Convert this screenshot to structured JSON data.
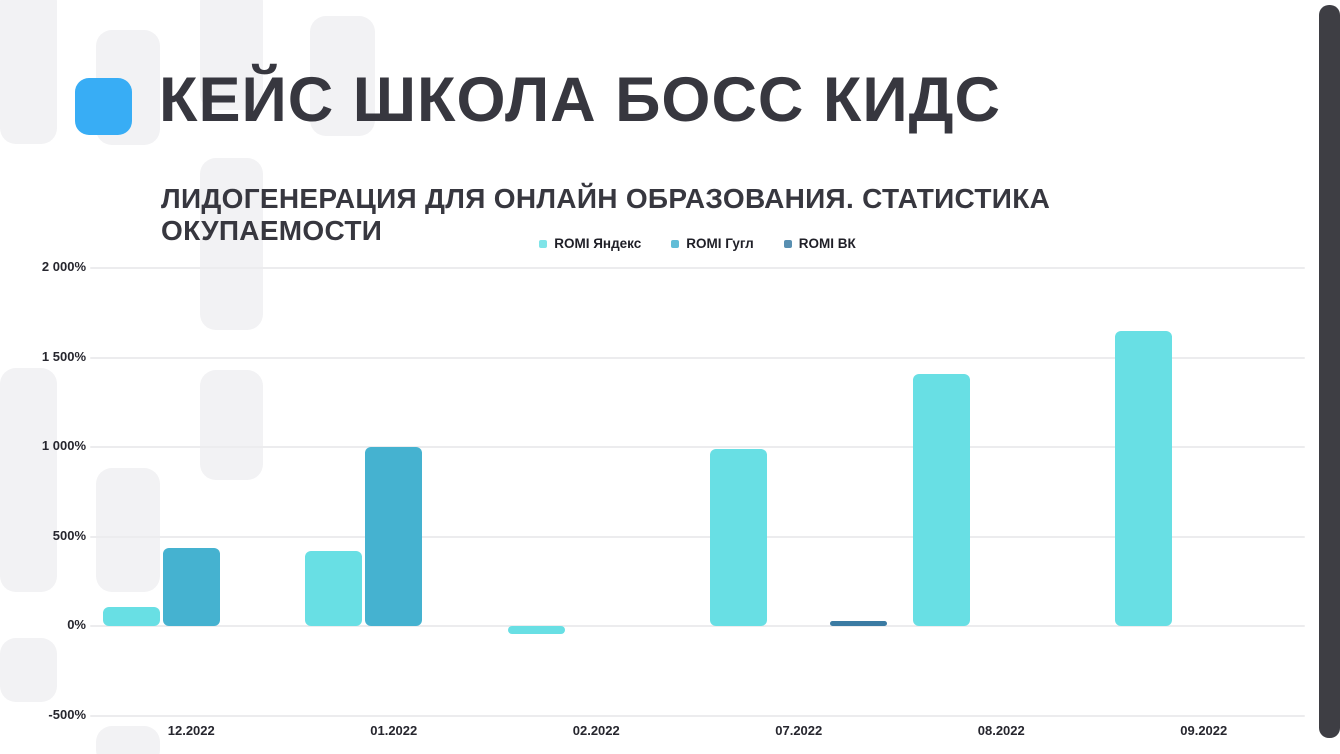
{
  "page": {
    "title": "КЕЙС ШКОЛА БОСС КИДС",
    "subtitle": "ЛИДОГЕНЕРАЦИЯ ДЛЯ ОНЛАЙН ОБРАЗОВАНИЯ. СТАТИСТИКА ОКУПАЕМОСТИ"
  },
  "colors": {
    "accent_square": "#38adf5",
    "title_text": "#37373f",
    "gridline": "#ececee",
    "decor_shape": "#f2f2f4",
    "right_bar": "#3e3e44"
  },
  "chart_data": {
    "type": "bar",
    "title": "",
    "xlabel": "",
    "ylabel": "",
    "categories": [
      "12.2022",
      "01.2022",
      "02.2022",
      "07.2022",
      "08.2022",
      "09.2022"
    ],
    "series": [
      {
        "name": "ROMI Яндекс",
        "color": "#68dfe4",
        "values": [
          110,
          420,
          -40,
          990,
          1410,
          1650
        ]
      },
      {
        "name": "ROMI Гугл",
        "color": "#45b2d0",
        "values": [
          440,
          1000,
          null,
          null,
          null,
          null
        ]
      },
      {
        "name": "ROMI ВК",
        "color": "#3b7ba3",
        "values": [
          null,
          null,
          null,
          30,
          null,
          null
        ]
      }
    ],
    "ylim": [
      -500,
      2000
    ],
    "y_ticks": [
      2000,
      1500,
      1000,
      500,
      0,
      -500
    ],
    "y_tick_labels": [
      "2 000%",
      "1 500%",
      "1 000%",
      "500%",
      "0%",
      "-500%"
    ],
    "grid": true,
    "legend_position": "top-center"
  }
}
